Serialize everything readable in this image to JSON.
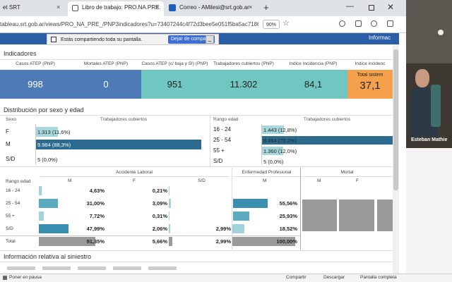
{
  "browser": {
    "tabs": [
      "et SRT",
      "Libro de trabajo: PRO.NA.PRE.",
      "Correo - AMilesi@srt.gob.ar"
    ],
    "url": "tableau.srt.gob.ar/views/PRO_NA_PRE_/PNP3indicadores?u=73407244c4f72d3bee5e051f5ba5ac7186",
    "zoom": "90%"
  },
  "share_bar": {
    "message": "Estás compartiendo toda su pantalla.",
    "button": "Dejar de compartir"
  },
  "dashboard": {
    "header_link": "Informac",
    "indicators_title": "Indicadores",
    "kpis": [
      {
        "label": "Casos ATEP (PNP)",
        "value": "998"
      },
      {
        "label": "Mortales ATEP (PNP)",
        "value": "0"
      },
      {
        "label": "Casos ATEP (c/ baja y SI) (PNP)",
        "value": "951"
      },
      {
        "label": "Trabajadores cubiertos (PNP)",
        "value": "11.302"
      },
      {
        "label": "Indice Incidencia (PNP)",
        "value": "84,1"
      },
      {
        "label": "Indice incidenc",
        "sublabel": "Total sistem",
        "value": "37,1"
      }
    ],
    "distribution_title": "Distribución por sexo y edad",
    "sex_table": {
      "headers": [
        "Sexo",
        "Trabajadores cubiertos"
      ],
      "rows": [
        {
          "label": "F",
          "text": "1.313 (11,6%)",
          "pct": 11.6
        },
        {
          "label": "M",
          "text": "9.984 (88,3%)",
          "pct": 88.3
        },
        {
          "label": "S/D",
          "text": "5 (0,0%)",
          "pct": 0
        }
      ]
    },
    "age_table": {
      "headers": [
        "Rango edad",
        "Trabajadores cubiertos"
      ],
      "rows": [
        {
          "label": "16 - 24",
          "text": "1.443 (12,8%)",
          "pct": 12.8
        },
        {
          "label": "25 - 54",
          "text": "8.494 (75,2%)",
          "pct": 75.2
        },
        {
          "label": "55 +",
          "text": "1.360 (12,0%)",
          "pct": 12.0
        },
        {
          "label": "S/D",
          "text": "5 (0,0%)",
          "pct": 0
        }
      ]
    },
    "cases_table": {
      "row_header": "Rango edad",
      "groups": [
        "Accidente Laboral",
        "Enfermedad Profesional",
        "Mortal"
      ],
      "subheaders": [
        "M",
        "F",
        "S/D",
        "M",
        "M",
        "F"
      ],
      "rows": [
        {
          "label": "16 - 24",
          "cells": [
            {
              "text": "4,63%",
              "pct": 4.63
            },
            {
              "text": "0,21%",
              "pct": 0.21
            },
            null,
            null
          ]
        },
        {
          "label": "25 - 54",
          "cells": [
            {
              "text": "31,00%",
              "pct": 31.0
            },
            {
              "text": "3,09%",
              "pct": 3.09
            },
            null,
            {
              "text": "55,56%",
              "pct": 55.56
            }
          ]
        },
        {
          "label": "55 +",
          "cells": [
            {
              "text": "7,72%",
              "pct": 7.72
            },
            {
              "text": "0,31%",
              "pct": 0.31
            },
            null,
            {
              "text": "25,93%",
              "pct": 25.93
            }
          ]
        },
        {
          "label": "S/D",
          "cells": [
            {
              "text": "47,99%",
              "pct": 47.99
            },
            {
              "text": "2,06%",
              "pct": 2.06
            },
            {
              "text": "2,99%",
              "pct": 2.99
            },
            {
              "text": "18,52%",
              "pct": 18.52
            }
          ]
        },
        {
          "label": "Total",
          "cells": [
            {
              "text": "91,35%",
              "pct": 91.35
            },
            {
              "text": "5,66%",
              "pct": 5.66
            },
            {
              "text": "2,99%",
              "pct": 2.99
            },
            {
              "text": "100,00%",
              "pct": 100.0
            }
          ]
        }
      ]
    },
    "next_section_title": "Información relativa al siniestro"
  },
  "video": {
    "name": "Esteban Mathie"
  },
  "bottom_bar": {
    "pause": "Poner en pausa",
    "share": "Compartir",
    "download": "Descargar",
    "fullscreen": "Pantalla completa"
  }
}
